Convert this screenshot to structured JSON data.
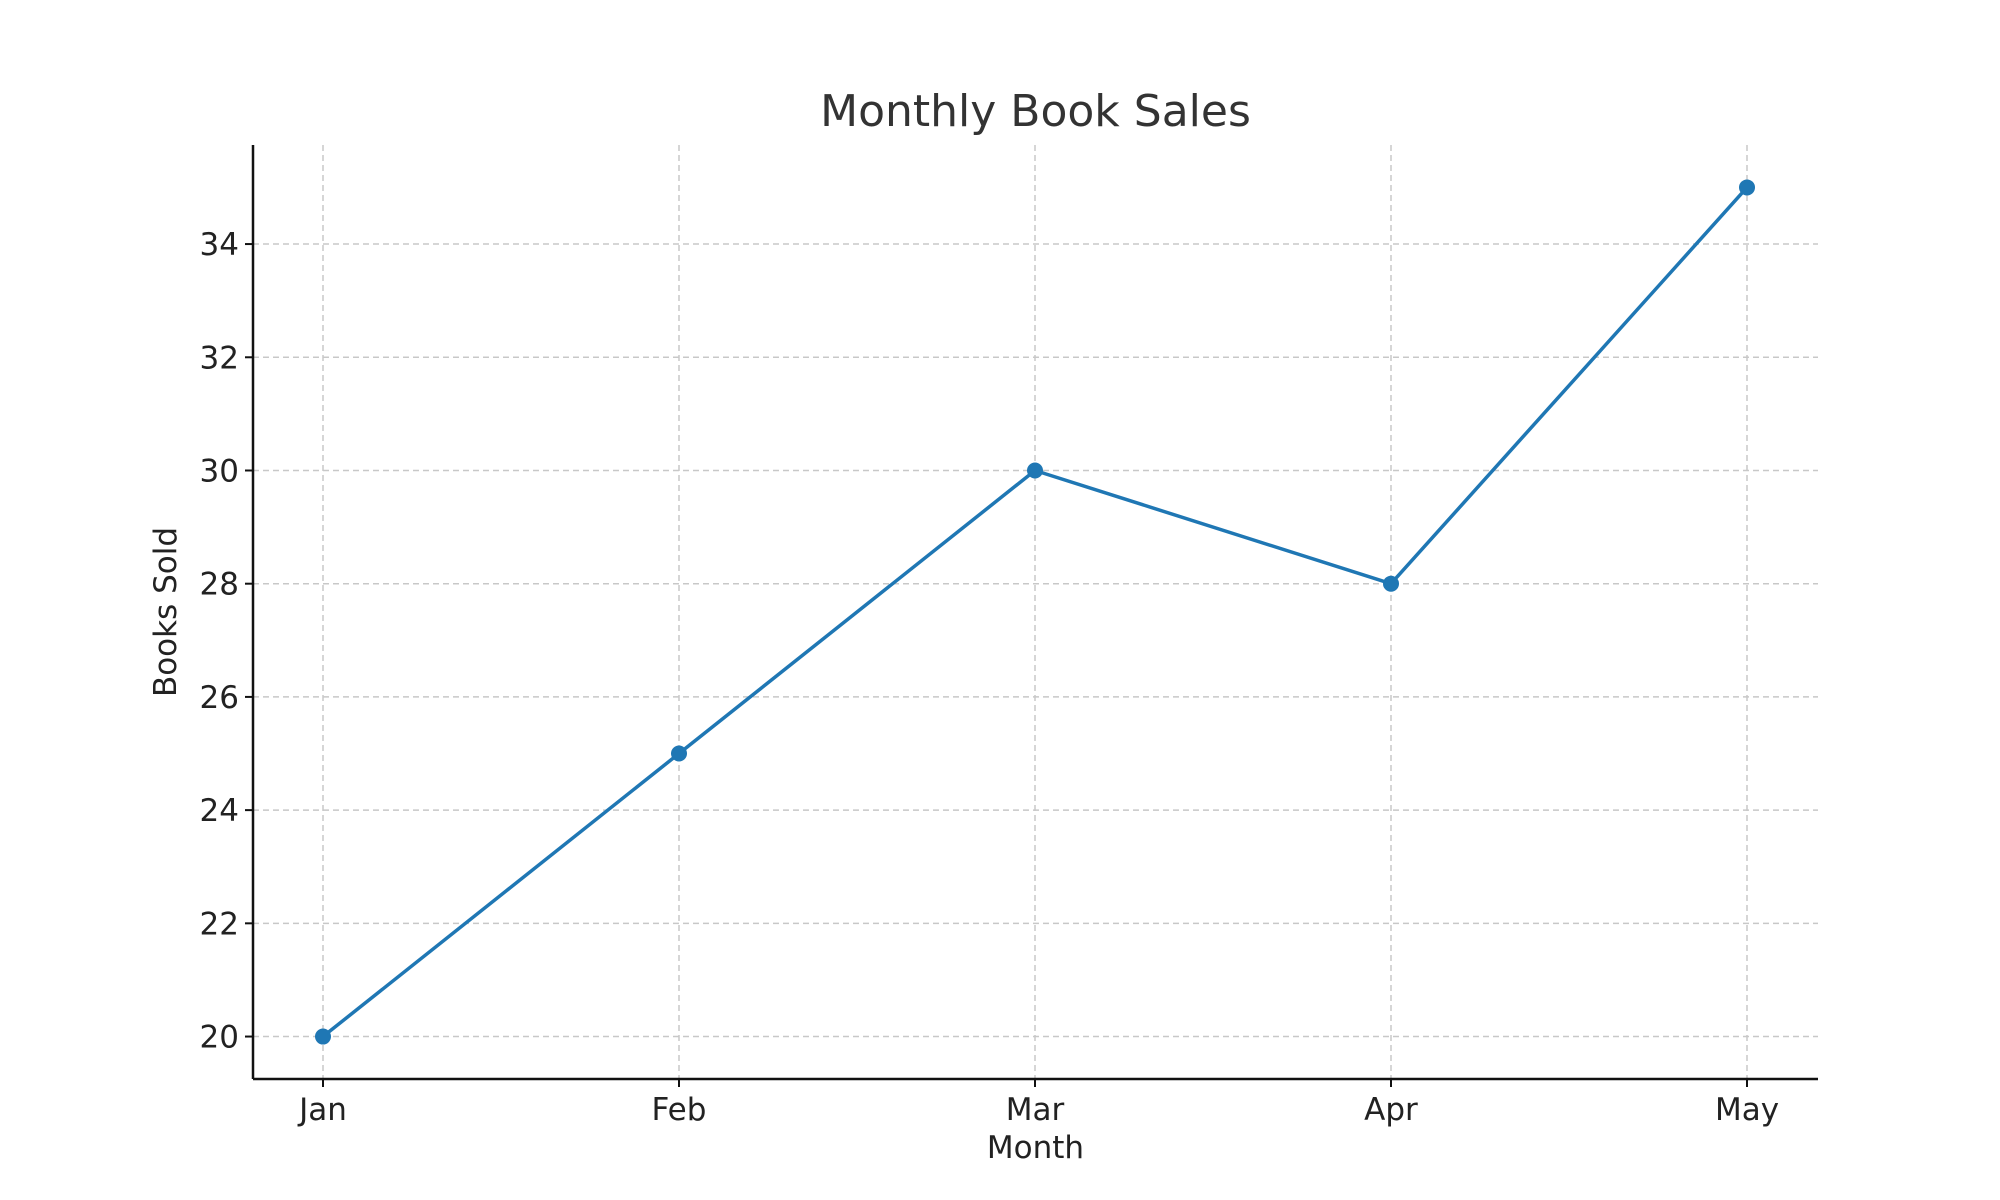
{
  "chart_data": {
    "type": "line",
    "title": "Monthly Book Sales",
    "xlabel": "Month",
    "ylabel": "Books Sold",
    "categories": [
      "Jan",
      "Feb",
      "Mar",
      "Apr",
      "May"
    ],
    "series": [
      {
        "values": [
          20,
          25,
          30,
          28,
          35
        ],
        "color": "#1f77b4"
      }
    ],
    "ylim": [
      19.25,
      35.75
    ],
    "yticks": [
      20,
      22,
      24,
      26,
      28,
      30,
      32,
      34
    ],
    "grid": true,
    "markers": "circle",
    "spines": "left-bottom"
  }
}
